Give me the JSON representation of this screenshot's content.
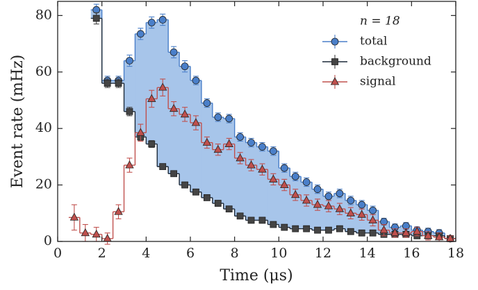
{
  "chart_data": {
    "type": "step",
    "xlabel": "Time (μs)",
    "ylabel": "Event rate (mHz)",
    "annotation": "n = 18",
    "x": [
      0.75,
      1.25,
      1.75,
      2.25,
      2.75,
      3.25,
      3.75,
      4.25,
      4.75,
      5.25,
      5.75,
      6.25,
      6.75,
      7.25,
      7.75,
      8.25,
      8.75,
      9.25,
      9.75,
      10.25,
      10.75,
      11.25,
      11.75,
      12.25,
      12.75,
      13.25,
      13.75,
      14.25,
      14.75,
      15.25,
      15.75,
      16.25,
      16.75,
      17.25,
      17.75
    ],
    "series": [
      {
        "name": "total",
        "color": "#4a7fc9",
        "marker": "circle",
        "values": [
          null,
          null,
          82,
          57,
          57,
          64,
          73.5,
          77.5,
          78.5,
          67,
          62,
          57,
          49,
          44,
          43.5,
          37,
          35,
          33.5,
          32,
          26,
          23,
          21,
          18.5,
          16,
          17,
          14.5,
          13,
          11,
          7,
          5,
          5.5,
          4,
          3.5,
          3,
          1
        ],
        "errors": [
          null,
          null,
          2,
          1.5,
          1.5,
          2,
          2,
          2,
          2,
          2,
          2,
          1.5,
          1.5,
          1.5,
          1.5,
          1.5,
          1.5,
          1.5,
          1.5,
          1.5,
          1.5,
          1.5,
          1.5,
          1.5,
          1.5,
          1.5,
          1.5,
          1.5,
          1.2,
          1.2,
          1.2,
          1.2,
          1.2,
          1.2,
          1
        ]
      },
      {
        "name": "background",
        "color": "#444444",
        "line_color": "#1b2838",
        "marker": "square",
        "values": [
          null,
          null,
          79,
          56,
          56,
          46,
          37,
          34.5,
          26.5,
          24,
          20,
          17.5,
          15.5,
          13.5,
          11.5,
          9,
          7.5,
          7.5,
          6,
          5,
          4.5,
          4.5,
          4,
          4,
          4.5,
          3.5,
          3,
          3,
          2.5,
          2.5,
          2.5,
          2,
          2,
          2,
          1
        ],
        "errors": [
          null,
          null,
          2,
          1.5,
          1.5,
          1.5,
          1.2,
          1.2,
          1,
          1,
          1,
          1,
          1,
          1,
          1,
          1,
          1,
          1,
          1,
          1,
          1,
          1,
          1,
          1,
          1,
          1,
          1,
          1,
          1,
          1,
          1,
          1,
          1,
          1,
          1
        ]
      },
      {
        "name": "signal",
        "color": "#c0504d",
        "marker": "triangle",
        "values": [
          8.5,
          3,
          2.5,
          1,
          10.5,
          27,
          38.5,
          50.5,
          54.5,
          47,
          45,
          42,
          35,
          32.5,
          34.5,
          29.5,
          27,
          25.5,
          22,
          20,
          16.5,
          14.5,
          13,
          12.5,
          11.5,
          10,
          9.5,
          7.5,
          4,
          3,
          3,
          3.5,
          2,
          1.5,
          1
        ],
        "errors": [
          4.5,
          3,
          2.5,
          2,
          2.5,
          2.5,
          3,
          3,
          3,
          2.5,
          2.5,
          2.5,
          2,
          2,
          2,
          2,
          2,
          2,
          2,
          2,
          2,
          2,
          2,
          2,
          2,
          2,
          2,
          2,
          2,
          1.5,
          1.5,
          1.5,
          1.5,
          1.5,
          1
        ]
      }
    ],
    "fill_color": "#a7c5ea",
    "xlim": [
      0,
      18
    ],
    "xticks": [
      0,
      2,
      4,
      6,
      8,
      10,
      12,
      14,
      16,
      18
    ],
    "ylim": [
      0,
      85
    ],
    "yticks": [
      0,
      20,
      40,
      60,
      80
    ],
    "legend": "upper right"
  }
}
